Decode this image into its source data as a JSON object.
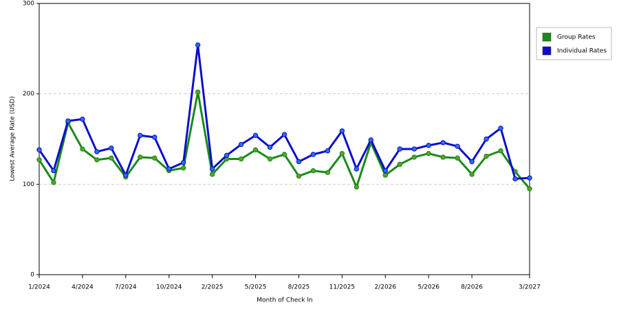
{
  "chart_data": {
    "type": "line",
    "x_label": "Month of Check In",
    "y_label": "Lowest Average Rate (USD)",
    "categories": [
      "1/2024",
      null,
      null,
      "4/2024",
      null,
      null,
      "7/2024",
      null,
      null,
      "10/2024",
      null,
      null,
      "2/2025",
      null,
      null,
      "5/2025",
      null,
      null,
      "8/2025",
      null,
      null,
      "11/2025",
      null,
      null,
      "2/2026",
      null,
      null,
      "5/2026",
      null,
      null,
      "8/2026",
      null,
      null,
      null,
      "3/2027"
    ],
    "series": [
      {
        "name": "Group Rates",
        "color": "#1a8a1a",
        "marker": "#5aa02a",
        "values": [
          127,
          102,
          168,
          139,
          127,
          129,
          108,
          130,
          129,
          115,
          118,
          202,
          111,
          128,
          128,
          138,
          128,
          133,
          109,
          115,
          113,
          134,
          97,
          146,
          110,
          122,
          130,
          134,
          130,
          129,
          111,
          131,
          137,
          114,
          95
        ]
      },
      {
        "name": "Individual Rates",
        "color": "#0c0ccc",
        "marker": "#2a70e0",
        "values": [
          138,
          115,
          170,
          172,
          136,
          140,
          110,
          154,
          152,
          117,
          124,
          254,
          117,
          132,
          144,
          154,
          141,
          155,
          125,
          133,
          137,
          159,
          117,
          149,
          115,
          139,
          139,
          143,
          146,
          142,
          125,
          150,
          162,
          106,
          107
        ]
      }
    ],
    "ylim": [
      0,
      300
    ],
    "yticks": [
      0,
      100,
      200,
      300
    ],
    "grid": true
  }
}
